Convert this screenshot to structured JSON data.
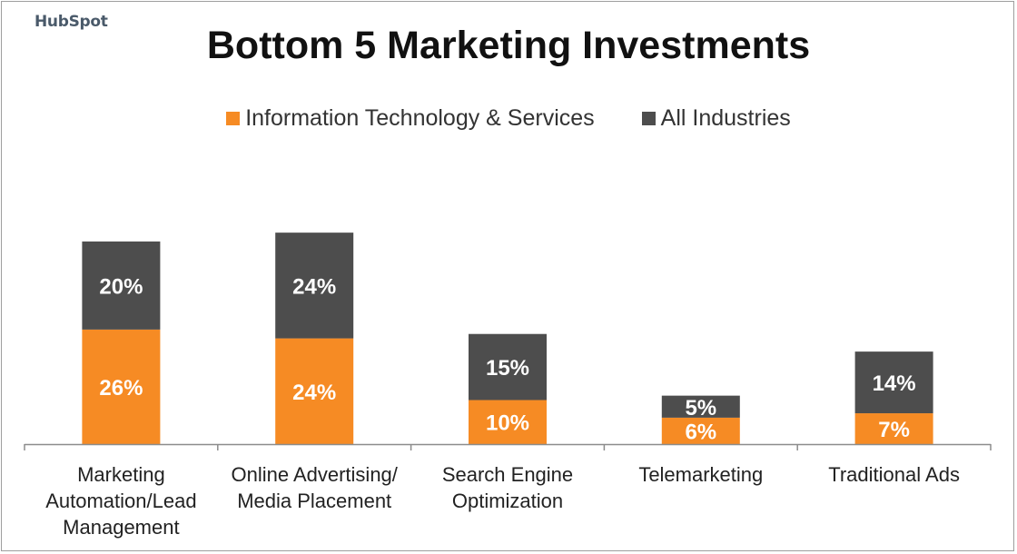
{
  "brand": {
    "logo_text": "HubSpot"
  },
  "colors": {
    "it_services": "#f68b24",
    "all_industries": "#4d4d4d",
    "axis": "#8c8c8c",
    "label_text": "#ffffff"
  },
  "chart_data": {
    "type": "bar",
    "stacked": true,
    "title": "Bottom 5 Marketing Investments",
    "xlabel": "",
    "ylabel": "",
    "legend_position": "top-center",
    "grid": false,
    "categories": [
      "Marketing Automation/Lead Management",
      "Online Advertising/ Media Placement",
      "Search Engine Optimization",
      "Telemarketing",
      "Traditional Ads"
    ],
    "category_lines": [
      [
        "Marketing",
        "Automation/Lead",
        "Management"
      ],
      [
        "Online Advertising/",
        "Media Placement"
      ],
      [
        "Search Engine",
        "Optimization"
      ],
      [
        "Telemarketing"
      ],
      [
        "Traditional Ads"
      ]
    ],
    "series": [
      {
        "name": "Information Technology & Services",
        "values": [
          26,
          24,
          10,
          6,
          7
        ],
        "labels": [
          "26%",
          "24%",
          "10%",
          "6%",
          "7%"
        ],
        "color": "#f68b24"
      },
      {
        "name": "All Industries",
        "values": [
          20,
          24,
          15,
          5,
          14
        ],
        "labels": [
          "20%",
          "24%",
          "15%",
          "5%",
          "14%"
        ],
        "color": "#4d4d4d"
      }
    ],
    "ylim": [
      0,
      53.6
    ]
  }
}
